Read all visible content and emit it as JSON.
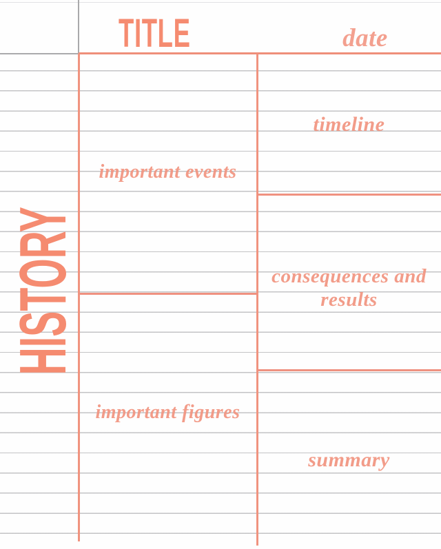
{
  "header": {
    "title": "TITLE",
    "date_label": "date"
  },
  "margin": {
    "subject_label": "HISTORY"
  },
  "sections": {
    "important_events": "important events",
    "timeline": "timeline",
    "consequences_and_results": "consequences and results",
    "important_figures": "important figures",
    "summary": "summary"
  },
  "colors": {
    "accent_text": "#f58b70",
    "accent_label": "#f29480",
    "accent_line": "#ef9180",
    "ruling_line": "#b9b9bb",
    "gray_line": "#a9a9ab",
    "background": "#fefefe"
  }
}
